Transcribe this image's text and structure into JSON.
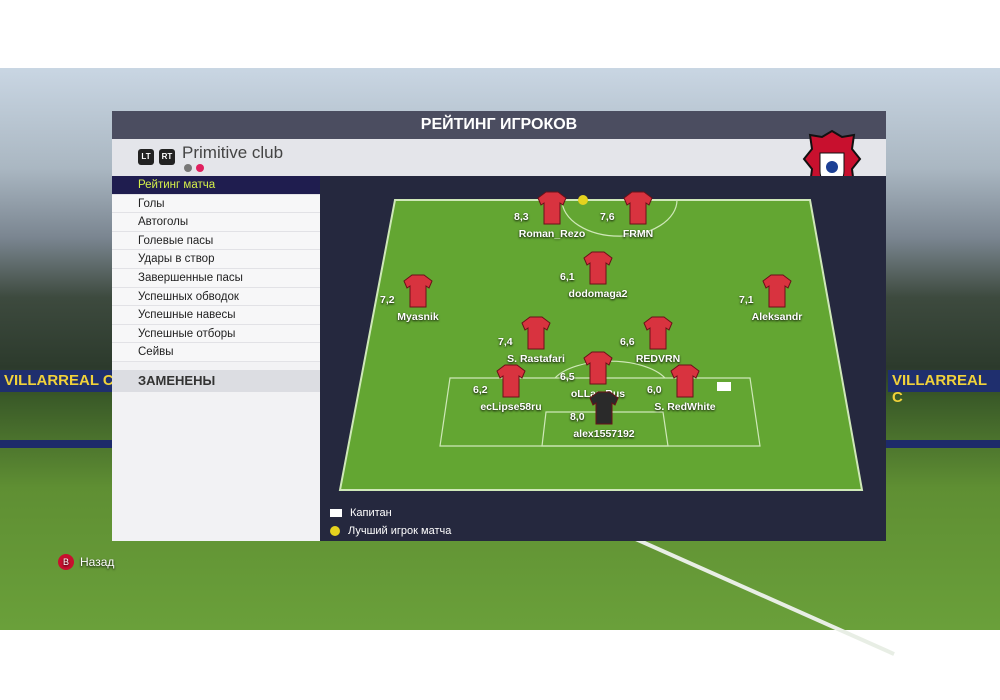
{
  "title": "РЕЙТИНГ ИГРОКОВ",
  "club": {
    "name": "Primitive club",
    "lt": "LT",
    "rt": "RT"
  },
  "menu": [
    "Рейтинг матча",
    "Голы",
    "Автоголы",
    "Голевые пасы",
    "Удары в створ",
    "Завершенные пасы",
    "Успешных обводок",
    "Успешные навесы",
    "Успешные отборы",
    "Сейвы"
  ],
  "substituted": "ЗАМЕНЕНЫ",
  "players": [
    {
      "name": "Roman_Rezo",
      "rating": "8,3",
      "motm": true
    },
    {
      "name": "FRMN",
      "rating": "7,6"
    },
    {
      "name": "dodomaga2",
      "rating": "6,1"
    },
    {
      "name": "Myasnik",
      "rating": "7,2"
    },
    {
      "name": "Aleksandr",
      "rating": "7,1"
    },
    {
      "name": "S. Rastafari",
      "rating": "7,4"
    },
    {
      "name": "REDVRN",
      "rating": "6,6"
    },
    {
      "name": "oLLan Rus",
      "rating": "6,5"
    },
    {
      "name": "ecLipse58ru",
      "rating": "6,2"
    },
    {
      "name": "S. RedWhite",
      "rating": "6,0",
      "captain": true
    },
    {
      "name": "alex1557192",
      "rating": "8,0",
      "goalkeeper": true
    }
  ],
  "legend": {
    "captain": "Капитан",
    "motm": "Лучший игрок матча"
  },
  "back": {
    "button": "B",
    "label": "Назад"
  },
  "stadium": {
    "board": "VILLARREAL C"
  },
  "colors": {
    "selected_bg": "#1f1d4f",
    "selected_text": "#d6f04a",
    "shirt": "#d8333f",
    "pitch": "#63a632"
  }
}
